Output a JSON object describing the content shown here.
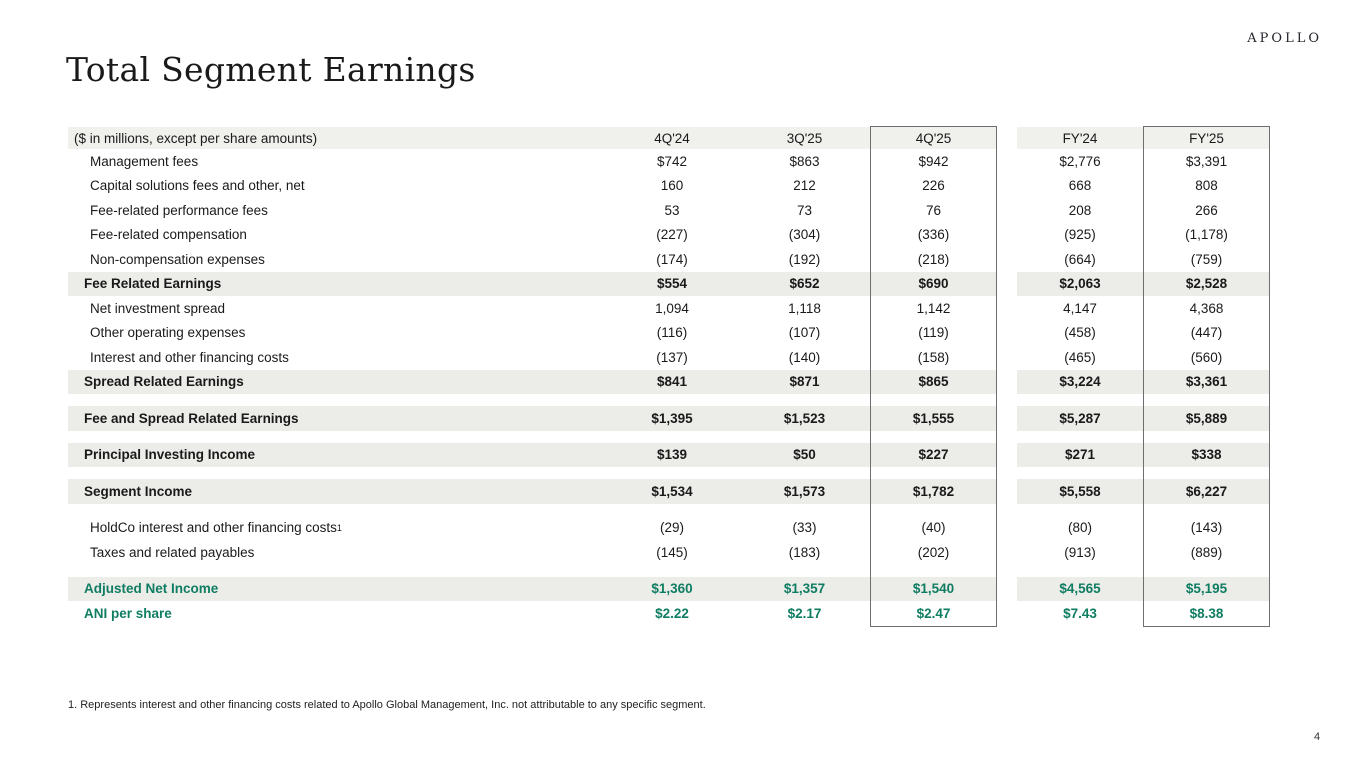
{
  "brand": {
    "logo_text": "APOLLO",
    "page_number": "4"
  },
  "title": "Total Segment Earnings",
  "colors": {
    "accent_green": "#0F7D62",
    "band_gray": "#ECECE9",
    "header_gray": "#F0F0ED",
    "box_border": "#6E6E6E"
  },
  "table": {
    "header": {
      "label": "($ in millions, except per share amounts)",
      "columns": [
        "4Q'24",
        "3Q'25",
        "4Q'25",
        "FY'24",
        "FY'25"
      ]
    },
    "highlighted_columns": [
      "4Q'25",
      "FY'25"
    ],
    "rows": [
      {
        "type": "item",
        "label": "Management fees",
        "values": [
          "$742",
          "$863",
          "$942",
          "$2,776",
          "$3,391"
        ]
      },
      {
        "type": "item",
        "label": "Capital solutions fees and other, net",
        "values": [
          "160",
          "212",
          "226",
          "668",
          "808"
        ]
      },
      {
        "type": "item",
        "label": "Fee-related performance fees",
        "values": [
          "53",
          "73",
          "76",
          "208",
          "266"
        ]
      },
      {
        "type": "item",
        "label": "Fee-related compensation",
        "values": [
          "(227)",
          "(304)",
          "(336)",
          "(925)",
          "(1,178)"
        ]
      },
      {
        "type": "item",
        "label": "Non-compensation expenses",
        "values": [
          "(174)",
          "(192)",
          "(218)",
          "(664)",
          "(759)"
        ]
      },
      {
        "type": "subtotal",
        "label": "Fee Related Earnings",
        "values": [
          "$554",
          "$652",
          "$690",
          "$2,063",
          "$2,528"
        ]
      },
      {
        "type": "item",
        "label": "Net investment spread",
        "values": [
          "1,094",
          "1,118",
          "1,142",
          "4,147",
          "4,368"
        ]
      },
      {
        "type": "item",
        "label": "Other operating expenses",
        "values": [
          "(116)",
          "(107)",
          "(119)",
          "(458)",
          "(447)"
        ]
      },
      {
        "type": "item",
        "label": "Interest and other financing costs",
        "values": [
          "(137)",
          "(140)",
          "(158)",
          "(465)",
          "(560)"
        ]
      },
      {
        "type": "subtotal",
        "label": "Spread Related Earnings",
        "values": [
          "$841",
          "$871",
          "$865",
          "$3,224",
          "$3,361"
        ]
      },
      {
        "type": "spacer"
      },
      {
        "type": "subtotal",
        "label": "Fee and Spread Related Earnings",
        "values": [
          "$1,395",
          "$1,523",
          "$1,555",
          "$5,287",
          "$5,889"
        ]
      },
      {
        "type": "spacer"
      },
      {
        "type": "subtotal",
        "label": "Principal Investing Income",
        "values": [
          "$139",
          "$50",
          "$227",
          "$271",
          "$338"
        ]
      },
      {
        "type": "spacer"
      },
      {
        "type": "subtotal",
        "label": "Segment Income",
        "values": [
          "$1,534",
          "$1,573",
          "$1,782",
          "$5,558",
          "$6,227"
        ]
      },
      {
        "type": "spacer"
      },
      {
        "type": "item",
        "label": "HoldCo interest and other financing costs",
        "sup": "1",
        "values": [
          "(29)",
          "(33)",
          "(40)",
          "(80)",
          "(143)"
        ]
      },
      {
        "type": "item",
        "label": "Taxes and related payables",
        "values": [
          "(145)",
          "(183)",
          "(202)",
          "(913)",
          "(889)"
        ]
      },
      {
        "type": "spacer"
      },
      {
        "type": "highlight-band",
        "label": "Adjusted Net Income",
        "values": [
          "$1,360",
          "$1,357",
          "$1,540",
          "$4,565",
          "$5,195"
        ]
      },
      {
        "type": "highlight",
        "label": "ANI per share",
        "values": [
          "$2.22",
          "$2.17",
          "$2.47",
          "$7.43",
          "$8.38"
        ]
      }
    ]
  },
  "footnote": "1. Represents interest and other financing costs related to Apollo Global Management, Inc. not attributable to any specific segment."
}
